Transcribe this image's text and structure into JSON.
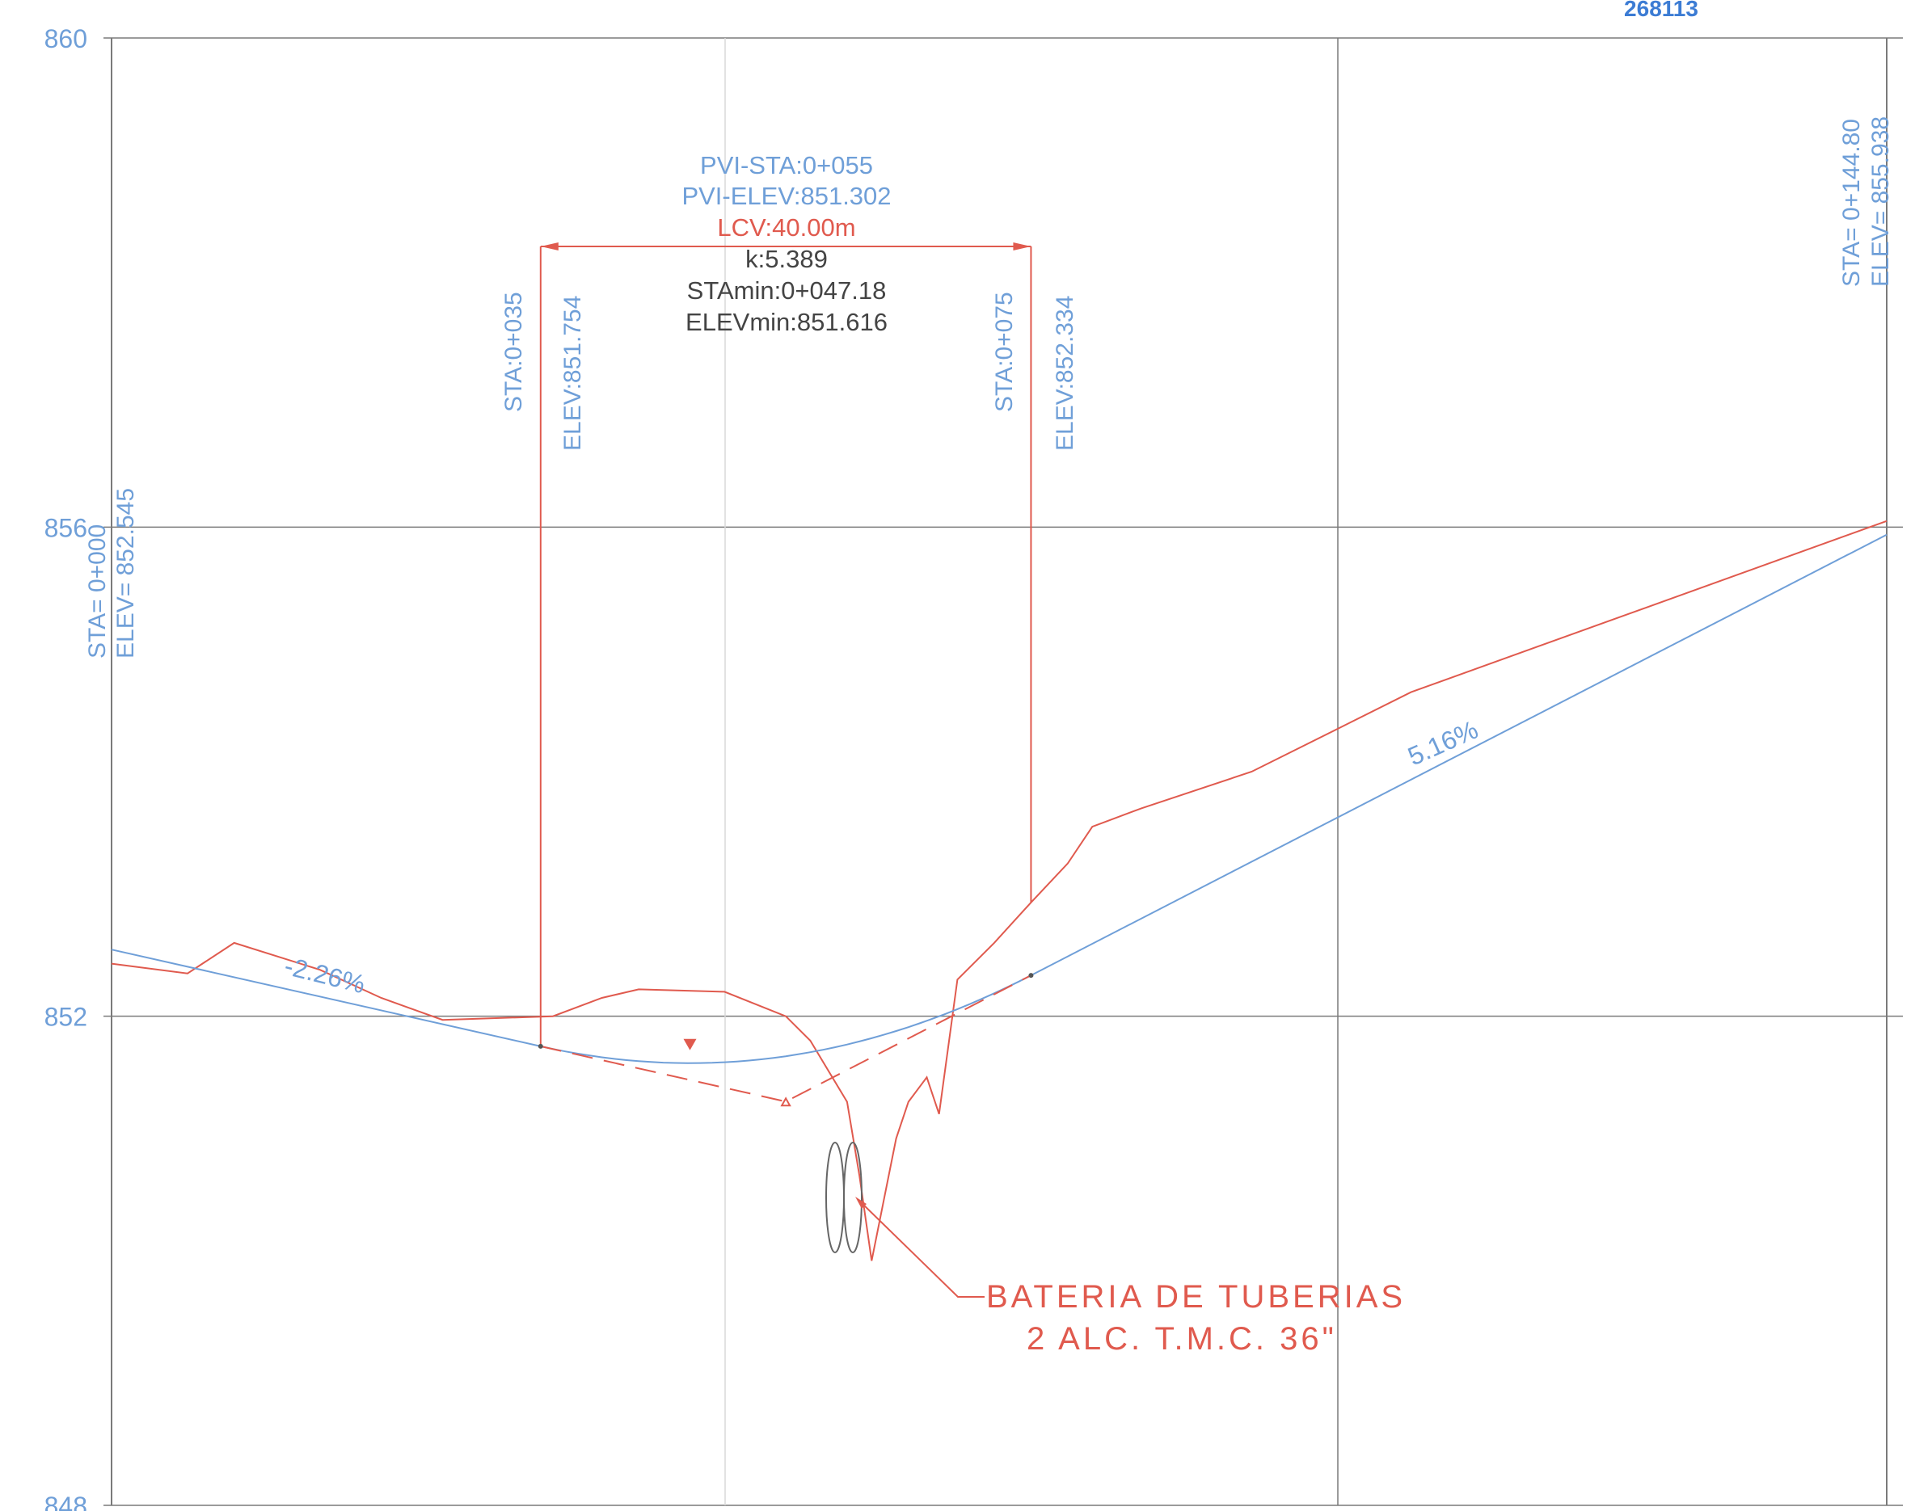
{
  "drawing_id": "268113",
  "axis": {
    "y_ticks": [
      "860",
      "856",
      "852",
      "848"
    ],
    "y_values": [
      860,
      856,
      852,
      848
    ],
    "ylim": [
      848,
      860
    ],
    "xlim": [
      0,
      144.8
    ]
  },
  "colors": {
    "design": "#6f9fd8",
    "ground": "#e05a4e",
    "grid": "#7a7a7a",
    "text_dark": "#444444",
    "id": "#3c7cd4"
  },
  "start_station": {
    "sta": "STA= 0+000",
    "elev": "ELEV= 852.545",
    "x": 0,
    "y": 852.545
  },
  "end_station": {
    "sta": "STA= 0+144.80",
    "elev": "ELEV= 855.938",
    "x": 144.8,
    "y": 855.938
  },
  "pvc": {
    "sta": "STA:0+035",
    "elev": "ELEV:851.754",
    "x": 35,
    "y": 851.754
  },
  "pvt": {
    "sta": "STA:0+075",
    "elev": "ELEV:852.334",
    "x": 75,
    "y": 852.334
  },
  "pvi": {
    "sta": "PVI-STA:0+055",
    "elev": "PVI-ELEV:851.302",
    "x": 55,
    "y": 851.302
  },
  "curve": {
    "lcv": "LCV:40.00m",
    "k": "k:5.389",
    "sta_min": "STAmin:0+047.18",
    "elev_min": "ELEVmin:851.616",
    "x_min": 47.18,
    "y_min": 851.616
  },
  "grades": {
    "in": "-2.26%",
    "out": "5.16%"
  },
  "ground_profile": [
    [
      0,
      852.43
    ],
    [
      6.2,
      852.35
    ],
    [
      10,
      852.6
    ],
    [
      17,
      852.38
    ],
    [
      22,
      852.15
    ],
    [
      27,
      851.97
    ],
    [
      36,
      852.0
    ],
    [
      40,
      852.15
    ],
    [
      43,
      852.22
    ],
    [
      50,
      852.2
    ],
    [
      55,
      852.0
    ],
    [
      57,
      851.8
    ],
    [
      60,
      851.3
    ],
    [
      61,
      850.7
    ],
    [
      62,
      850.0
    ],
    [
      64,
      851.0
    ],
    [
      65,
      851.3
    ],
    [
      66.5,
      851.5
    ],
    [
      67.5,
      851.2
    ],
    [
      69,
      852.3
    ],
    [
      72,
      852.6
    ],
    [
      75,
      852.93
    ],
    [
      78,
      853.25
    ],
    [
      80,
      853.55
    ],
    [
      84,
      853.7
    ],
    [
      93,
      854.0
    ],
    [
      101,
      854.4
    ],
    [
      106,
      854.65
    ],
    [
      144.8,
      856.05
    ]
  ],
  "note": {
    "line1": "BATERIA DE TUBERIAS",
    "line2": "2 ALC. T.M.C. 36\""
  }
}
